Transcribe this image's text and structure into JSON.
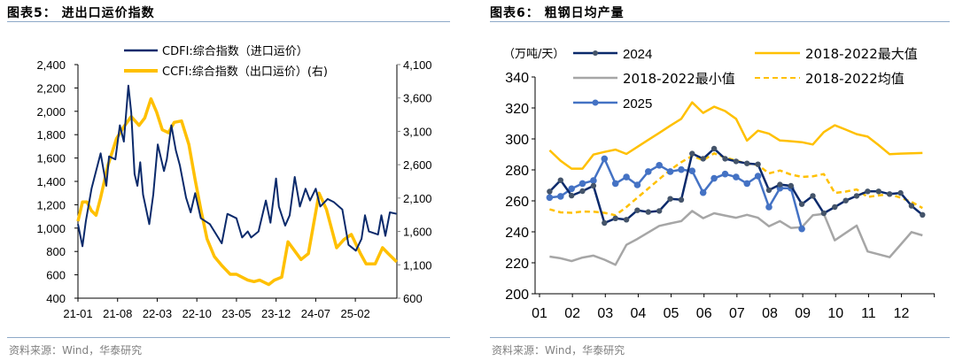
{
  "left_panel": {
    "title": "图表5：  进出口运价指数",
    "source": "资料来源：Wind，华泰研究"
  },
  "right_panel": {
    "title": "图表6：  粗钢日均产量",
    "source": "资料来源：Wind，华泰研究"
  },
  "colors": {
    "navy": "#0B2A6B",
    "gold": "#FFC000",
    "gray": "#A6A6A6",
    "blue": "#4472C4",
    "marker_2024": "#44546A",
    "rule": "#8EA9C8"
  },
  "chart_data": [
    {
      "type": "line",
      "title": "",
      "xlabel": "",
      "ylabel": "",
      "x_ticks": [
        "21-01",
        "21-08",
        "22-03",
        "22-10",
        "23-05",
        "23-12",
        "24-07",
        "25-02"
      ],
      "y_left": {
        "ticks": [
          "2,400",
          "2,200",
          "2,000",
          "1,800",
          "1,600",
          "1,400",
          "1,200",
          "1,000",
          "800",
          "600",
          "400"
        ],
        "range": [
          400,
          2400
        ]
      },
      "y_right": {
        "ticks": [
          "4,100",
          "3,600",
          "3,100",
          "2,600",
          "2,100",
          "1,600",
          "1,100",
          "600"
        ],
        "range": [
          600,
          4100
        ]
      },
      "grid": false,
      "legend_position": "top",
      "series": [
        {
          "name": "CDFI:综合指数（进口运价）",
          "axis": "left",
          "color": "#0B2A6B",
          "points": [
            [
              "2021-01-01",
              1034
            ],
            [
              "2021-01-25",
              845
            ],
            [
              "2021-02-13",
              1059
            ],
            [
              "2021-03-13",
              1337
            ],
            [
              "2021-05-01",
              1640
            ],
            [
              "2021-06-01",
              1362
            ],
            [
              "2021-06-16",
              1614
            ],
            [
              "2021-07-19",
              1589
            ],
            [
              "2021-08-13",
              1880
            ],
            [
              "2021-09-04",
              1741
            ],
            [
              "2021-09-28",
              2220
            ],
            [
              "2021-10-13",
              1993
            ],
            [
              "2021-11-01",
              1463
            ],
            [
              "2021-11-16",
              1362
            ],
            [
              "2021-12-01",
              1564
            ],
            [
              "2021-12-16",
              1286
            ],
            [
              "2022-01-19",
              1034
            ],
            [
              "2022-02-10",
              1286
            ],
            [
              "2022-03-04",
              1716
            ],
            [
              "2022-04-07",
              1489
            ],
            [
              "2022-04-22",
              1589
            ],
            [
              "2022-05-16",
              1880
            ],
            [
              "2022-06-10",
              1665
            ],
            [
              "2022-07-01",
              1539
            ],
            [
              "2022-08-04",
              1261
            ],
            [
              "2022-08-28",
              1135
            ],
            [
              "2022-09-22",
              1299
            ],
            [
              "2022-10-22",
              1084
            ],
            [
              "2022-12-10",
              1034
            ],
            [
              "2023-02-13",
              870
            ],
            [
              "2023-03-13",
              1122
            ],
            [
              "2023-05-01",
              1084
            ],
            [
              "2023-06-01",
              920
            ],
            [
              "2023-07-01",
              971
            ],
            [
              "2023-07-19",
              920
            ],
            [
              "2023-08-28",
              971
            ],
            [
              "2023-10-07",
              1236
            ],
            [
              "2023-11-01",
              1046
            ],
            [
              "2023-12-01",
              1425
            ],
            [
              "2023-12-16",
              1185
            ],
            [
              "2024-01-19",
              1021
            ],
            [
              "2024-02-13",
              1110
            ],
            [
              "2024-03-10",
              1438
            ],
            [
              "2024-04-07",
              1185
            ],
            [
              "2024-05-07",
              1337
            ],
            [
              "2024-06-01",
              1236
            ],
            [
              "2024-07-01",
              1337
            ],
            [
              "2024-07-25",
              1185
            ],
            [
              "2024-09-04",
              1249
            ],
            [
              "2024-10-07",
              1223
            ],
            [
              "2024-11-22",
              1160
            ],
            [
              "2024-12-25",
              857
            ],
            [
              "2025-02-04",
              807
            ],
            [
              "2025-03-04",
              908
            ],
            [
              "2025-03-22",
              1110
            ],
            [
              "2025-04-13",
              971
            ],
            [
              "2025-06-01",
              945
            ],
            [
              "2025-06-19",
              1110
            ],
            [
              "2025-07-10",
              933
            ],
            [
              "2025-08-04",
              1135
            ],
            [
              "2025-09-10",
              1122
            ]
          ]
        },
        {
          "name": "CCFI:综合指数（出口运价）(右)",
          "axis": "right",
          "color": "#FFC000",
          "points": [
            [
              "2021-01-01",
              1753
            ],
            [
              "2021-01-25",
              2041
            ],
            [
              "2021-02-19",
              2041
            ],
            [
              "2021-03-13",
              1909
            ],
            [
              "2021-04-07",
              1842
            ],
            [
              "2021-05-01",
              2107
            ],
            [
              "2021-06-10",
              2593
            ],
            [
              "2021-07-25",
              2990
            ],
            [
              "2021-09-04",
              3168
            ],
            [
              "2021-10-13",
              3322
            ],
            [
              "2021-11-25",
              3189
            ],
            [
              "2021-12-25",
              3301
            ],
            [
              "2022-01-28",
              3587
            ],
            [
              "2022-02-28",
              3388
            ],
            [
              "2022-03-28",
              3123
            ],
            [
              "2022-05-01",
              3079
            ],
            [
              "2022-06-01",
              3234
            ],
            [
              "2022-07-10",
              3256
            ],
            [
              "2022-08-19",
              2903
            ],
            [
              "2022-09-22",
              2373
            ],
            [
              "2022-10-22",
              1930
            ],
            [
              "2022-11-25",
              1488
            ],
            [
              "2023-01-04",
              1223
            ],
            [
              "2023-02-13",
              1091
            ],
            [
              "2023-03-28",
              958
            ],
            [
              "2023-05-01",
              958
            ],
            [
              "2023-06-01",
              914
            ],
            [
              "2023-07-01",
              870
            ],
            [
              "2023-08-04",
              848
            ],
            [
              "2023-09-04",
              870
            ],
            [
              "2023-10-22",
              804
            ],
            [
              "2023-11-22",
              870
            ],
            [
              "2024-01-01",
              914
            ],
            [
              "2024-02-04",
              1445
            ],
            [
              "2024-04-13",
              1179
            ],
            [
              "2024-05-22",
              1268
            ],
            [
              "2024-07-19",
              2174
            ],
            [
              "2024-08-28",
              1930
            ],
            [
              "2024-10-22",
              1356
            ],
            [
              "2024-12-01",
              1479
            ],
            [
              "2025-01-10",
              1555
            ],
            [
              "2025-02-28",
              1268
            ],
            [
              "2025-03-28",
              1113
            ],
            [
              "2025-05-16",
              1113
            ],
            [
              "2025-06-25",
              1356
            ],
            [
              "2025-07-25",
              1268
            ],
            [
              "2025-09-10",
              1144
            ]
          ]
        }
      ]
    },
    {
      "type": "line",
      "title": "",
      "xlabel": "",
      "ylabel": "（万吨/天）",
      "x_ticks": [
        "01",
        "02",
        "03",
        "04",
        "05",
        "06",
        "07",
        "08",
        "09",
        "10",
        "11",
        "12"
      ],
      "y_ticks": [
        "340",
        "320",
        "300",
        "280",
        "260",
        "240",
        "220",
        "200"
      ],
      "ylim": [
        200,
        340
      ],
      "grid": false,
      "legend_position": "top",
      "series": [
        {
          "name": "2024",
          "color": "#0B2A6B",
          "marker": true,
          "marker_color": "#44546A",
          "values": [
            266,
            273.3,
            263.4,
            266.3,
            269.7,
            245.7,
            248.7,
            247.8,
            253.9,
            252.8,
            253.5,
            261.3,
            260.7,
            290.5,
            287.2,
            293.7,
            287.2,
            285.5,
            284.2,
            283.6,
            266.9,
            270.5,
            269.7,
            257.9,
            263.2,
            252,
            256,
            260.2,
            263.2,
            266.1,
            266.1,
            264.4,
            265.1,
            256.8,
            251
          ]
        },
        {
          "name": "2018-2022最大值",
          "color": "#FFC000",
          "marker": false,
          "dashed": false,
          "values": [
            292.6,
            285.9,
            280.8,
            280.8,
            289.9,
            291.6,
            293.1,
            290.3,
            294.8,
            299.4,
            303.9,
            308.5,
            313,
            323.6,
            316.8,
            320.8,
            318,
            313,
            298.9,
            305.3,
            303.4,
            299,
            298.5,
            297.9,
            296.4,
            304.4,
            308.8,
            306,
            303.1,
            301.5,
            296,
            290.1,
            290.5,
            290.7,
            290.9
          ]
        },
        {
          "name": "2018-2022最小值",
          "color": "#A6A6A6",
          "marker": false,
          "dashed": false,
          "values": [
            224,
            222.9,
            221.1,
            223.4,
            224.6,
            222,
            218.7,
            231.6,
            235.4,
            239.6,
            243.8,
            245.4,
            246.9,
            253.5,
            248.8,
            252,
            250.5,
            249.1,
            251,
            249.1,
            243.6,
            246.9,
            242.5,
            243,
            250.7,
            251.6,
            234.5,
            239.3,
            244,
            227.3,
            225.5,
            223.6,
            231.7,
            239.8,
            237.7
          ]
        },
        {
          "name": "2018-2022均值",
          "color": "#FFC000",
          "marker": false,
          "dashed": true,
          "values": [
            254.5,
            252.6,
            252.3,
            253.1,
            253,
            252.3,
            250.7,
            256,
            262,
            268,
            274,
            280,
            285,
            289,
            286.3,
            290.7,
            288,
            286,
            284,
            283.2,
            277.7,
            279.6,
            277,
            275.5,
            275.8,
            277.3,
            265.1,
            266,
            267.4,
            262.5,
            263.5,
            264.4,
            262,
            259.3,
            255.4
          ]
        },
        {
          "name": "2025",
          "color": "#4472C4",
          "marker": true,
          "marker_color": "#4472C4",
          "values": [
            262.1,
            262.9,
            267.8,
            271.2,
            273.1,
            287.2,
            271.2,
            275.4,
            270.3,
            278.9,
            283,
            278.9,
            280.2,
            279.3,
            265.3,
            274.5,
            277.3,
            275.4,
            271.2,
            276,
            256,
            268.2,
            268.2,
            241.9
          ]
        }
      ]
    }
  ]
}
